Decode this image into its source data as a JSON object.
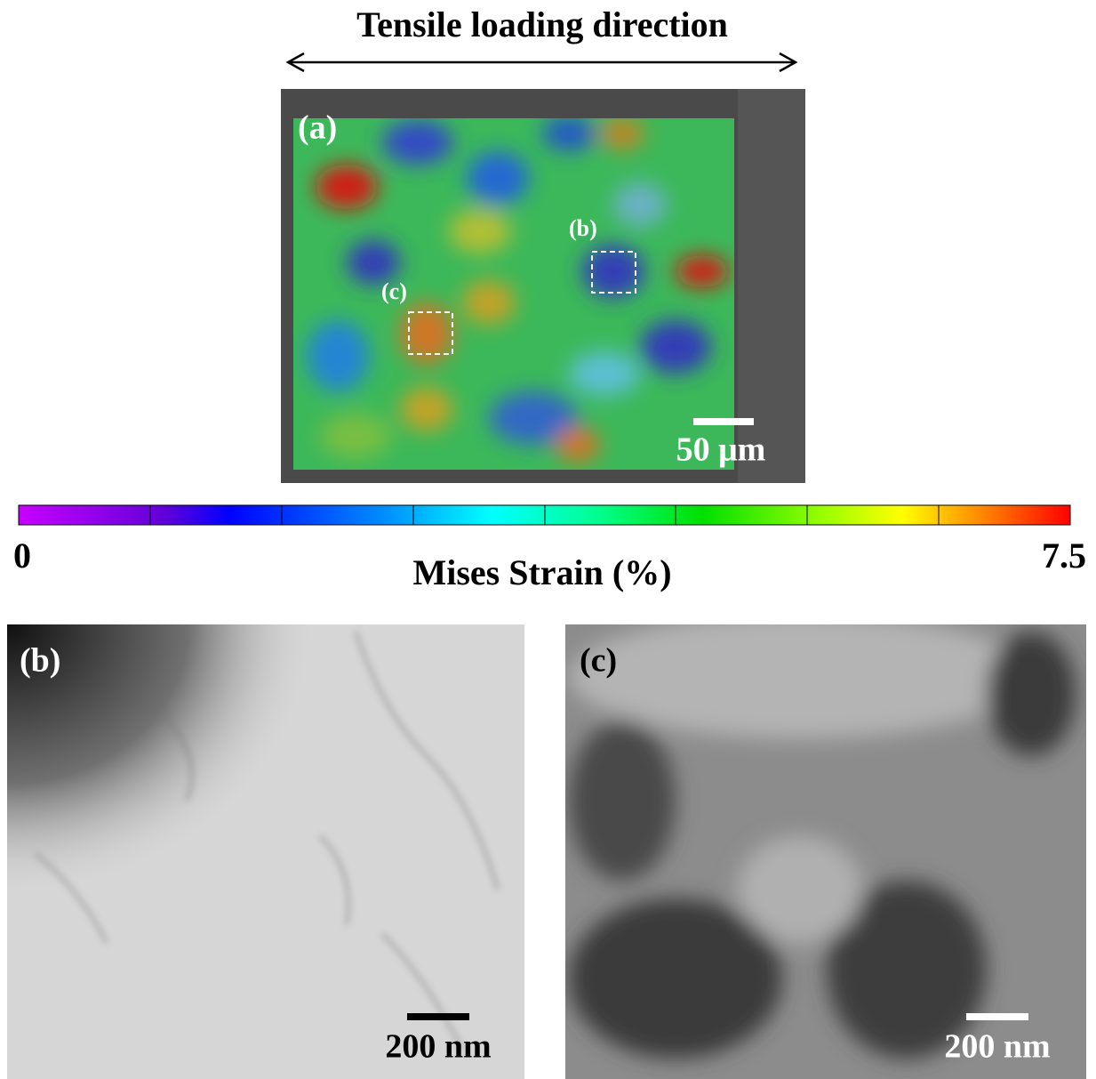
{
  "header": {
    "title": "Tensile loading direction"
  },
  "panel_a": {
    "label": "(a)",
    "region_b_label": "(b)",
    "region_c_label": "(c)",
    "scale_bar": "50 μm"
  },
  "colorbar": {
    "min": 0,
    "max": 7.5,
    "title": "Mises Strain (%)"
  },
  "panel_b": {
    "label": "(b)",
    "scale_bar": "200 nm"
  },
  "panel_c": {
    "label": "(c)",
    "scale_bar": "200 nm"
  }
}
